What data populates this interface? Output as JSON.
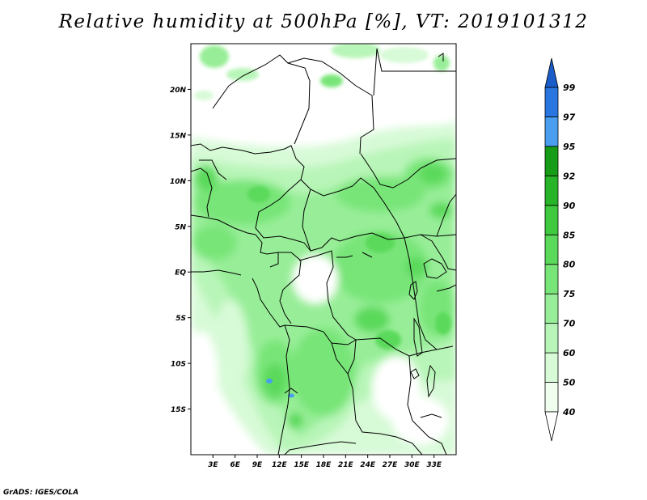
{
  "title": "Relative humidity at 500hPa [%], VT: 2019101312",
  "credit": "GrADS: IGES/COLA",
  "map": {
    "lon_range": [
      0,
      36
    ],
    "lat_range": [
      -20,
      25
    ],
    "lat_ticks": [
      {
        "value": 20,
        "label": "20N"
      },
      {
        "value": 15,
        "label": "15N"
      },
      {
        "value": 10,
        "label": "10N"
      },
      {
        "value": 5,
        "label": "5N"
      },
      {
        "value": 0,
        "label": "EQ"
      },
      {
        "value": -5,
        "label": "5S"
      },
      {
        "value": -10,
        "label": "10S"
      },
      {
        "value": -15,
        "label": "15S"
      }
    ],
    "lon_ticks": [
      {
        "value": 3,
        "label": "3E"
      },
      {
        "value": 6,
        "label": "6E"
      },
      {
        "value": 9,
        "label": "9E"
      },
      {
        "value": 12,
        "label": "12E"
      },
      {
        "value": 15,
        "label": "15E"
      },
      {
        "value": 18,
        "label": "18E"
      },
      {
        "value": 21,
        "label": "21E"
      },
      {
        "value": 24,
        "label": "24E"
      },
      {
        "value": 27,
        "label": "27E"
      },
      {
        "value": 30,
        "label": "30E"
      },
      {
        "value": 33,
        "label": "33E"
      }
    ]
  },
  "colorbar": {
    "levels": [
      {
        "label": "40",
        "color": "#f0fef0"
      },
      {
        "label": "50",
        "color": "#d7fad7"
      },
      {
        "label": "60",
        "color": "#b8f5b8"
      },
      {
        "label": "70",
        "color": "#98ee98"
      },
      {
        "label": "75",
        "color": "#78e578"
      },
      {
        "label": "80",
        "color": "#5ad95a"
      },
      {
        "label": "85",
        "color": "#3ec93e"
      },
      {
        "label": "90",
        "color": "#28b428"
      },
      {
        "label": "92",
        "color": "#169c16"
      },
      {
        "label": "95",
        "color": "#4a9ef0"
      },
      {
        "label": "97",
        "color": "#2a76e0"
      },
      {
        "label": "99",
        "color": ""
      }
    ],
    "low_color": "#ffffff",
    "high_color": "#1a5cc8"
  }
}
